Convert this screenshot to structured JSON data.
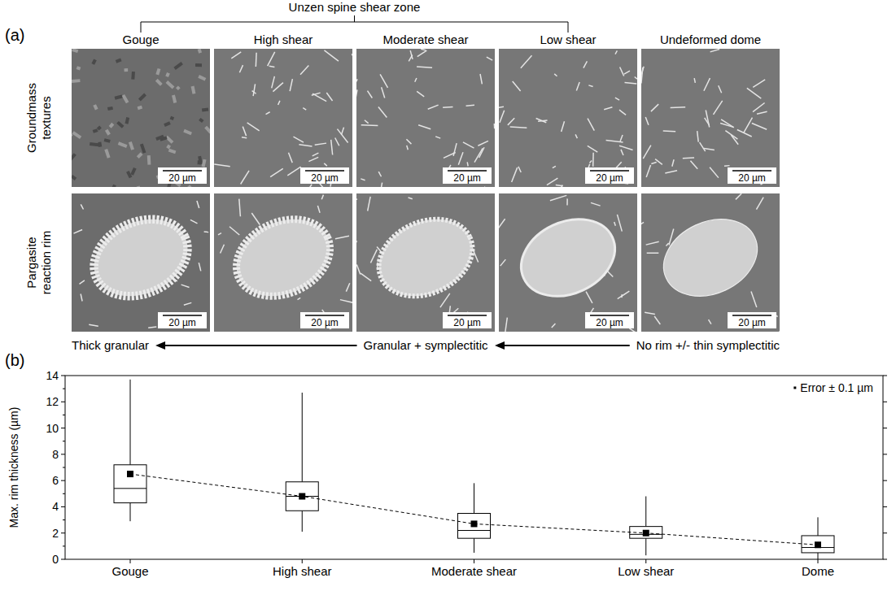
{
  "figure_a": {
    "panel_label": "(a)",
    "title": "Unzen spine shear zone",
    "columns": [
      "Gouge",
      "High shear",
      "Moderate shear",
      "Low shear",
      "Undeformed dome"
    ],
    "rows": [
      "Groundmass textures",
      "Pargasite reaction rim"
    ],
    "scale_bar": "20 µm",
    "trend_labels": [
      "Thick granular",
      "Granular + symplectitic",
      "No rim +/- thin symplectitic"
    ]
  },
  "chart_data": {
    "type": "box",
    "panel_label": "(b)",
    "y_label": "Max. rim thickness (µm)",
    "categories": [
      "Gouge",
      "High shear",
      "Moderate shear",
      "Low shear",
      "Dome"
    ],
    "min": [
      2.9,
      2.1,
      0.5,
      0.3,
      0.0
    ],
    "q1": [
      4.3,
      3.7,
      1.6,
      1.6,
      0.5
    ],
    "median": [
      5.4,
      4.8,
      2.2,
      1.9,
      0.9
    ],
    "q3": [
      7.2,
      5.9,
      3.5,
      2.5,
      1.8
    ],
    "max": [
      13.7,
      12.7,
      5.8,
      4.8,
      3.2
    ],
    "mean": [
      6.5,
      4.8,
      2.7,
      2.0,
      1.1
    ],
    "annotations": [
      "Error ± 0.1 µm"
    ],
    "marker": "square",
    "line_style": "dashed",
    "color": "#000000",
    "ylim": [
      0,
      14
    ],
    "yticks": [
      0,
      2,
      4,
      6,
      8,
      10,
      12,
      14
    ],
    "grid": false
  }
}
